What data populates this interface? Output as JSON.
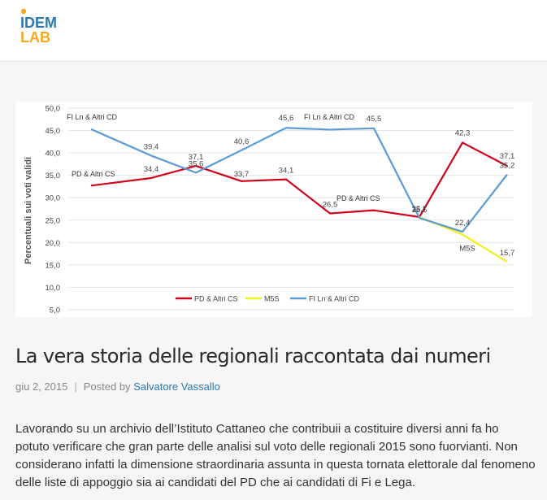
{
  "site": {
    "logo_line1": "IDEM",
    "logo_line2": "LAB",
    "logo_colors": {
      "dot": "#f7a823",
      "text_top": "#2a7ab0",
      "text_bottom": "#f7a823"
    }
  },
  "chart_data": {
    "type": "line",
    "ylabel": "Percentuali sui voti validi",
    "ylim": [
      5,
      50
    ],
    "yticks": [
      "50,0",
      "45,0",
      "40,0",
      "35,0",
      "30,0",
      "25,0",
      "20,0",
      "15,0",
      "10,0",
      "5,0"
    ],
    "grid": true,
    "legend_position": "bottom",
    "series": [
      {
        "name": "PD & Altri CS",
        "color": "#d0021b",
        "values": [
          32.7,
          34.4,
          37.1,
          33.7,
          34.1,
          26.5,
          27.2,
          25.7,
          42.3,
          37.1
        ],
        "labels": [
          "",
          "34,4",
          "37,1",
          "33,7",
          "34,1",
          "26,5",
          "",
          "25,7",
          "42,3",
          "37,1"
        ]
      },
      {
        "name": "M5S",
        "color": "#f0f01e",
        "values": [
          null,
          null,
          null,
          null,
          null,
          null,
          null,
          25.7,
          21.8,
          15.7
        ],
        "labels": [
          "",
          "",
          "",
          "",
          "",
          "",
          "",
          "",
          "M5S",
          "15,7"
        ]
      },
      {
        "name": "FI Ln & Altri CD",
        "color": "#5b9bd5",
        "values": [
          45.3,
          39.4,
          35.6,
          40.6,
          45.6,
          45.2,
          45.5,
          25.5,
          22.4,
          35.2
        ],
        "labels": [
          "",
          "39,4",
          "35,6",
          "40,6",
          "45,6",
          "",
          "45,5",
          "25,5",
          "22,4",
          "35,2"
        ]
      }
    ],
    "annotations": [
      "FI Ln & Altri CD",
      "PD & Altri CS",
      "FI Ln & Altri CD",
      "PD & Altri CS"
    ]
  },
  "post": {
    "title": "La vera storia delle regionali raccontata dai numeri",
    "date": "giu 2, 2015",
    "separator": "|",
    "posted_by_label": "Posted by",
    "author": "Salvatore Vassallo",
    "paragraph": "Lavorando su un archivio dell’Istituto Cattaneo che contribuii a costituire diversi anni fa ho potuto verificare che gran parte delle analisi sul voto delle regionali 2015 sono fuorvianti. Non considerano infatti la dimensione straordinaria assunta in questa tornata elettorale dal fenomeno delle liste di appoggio sia ai candidati del PD che ai candidati di Fi e Lega."
  }
}
